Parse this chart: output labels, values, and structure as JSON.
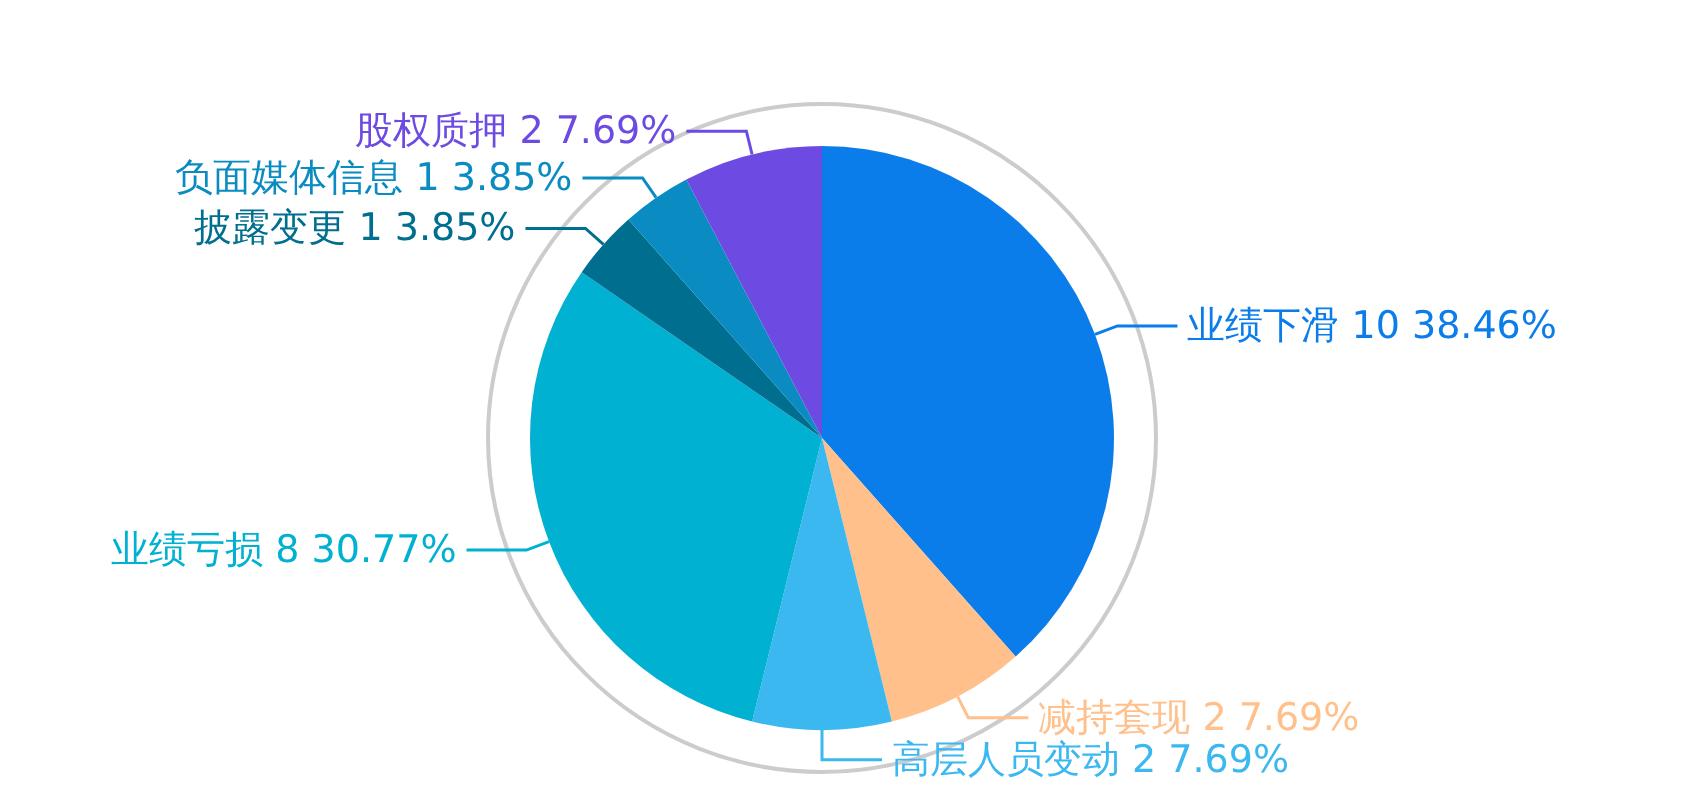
{
  "chart_data": {
    "type": "pie",
    "categories": [
      "业绩下滑",
      "减持套现",
      "高层人员变动",
      "业绩亏损",
      "披露变更",
      "负面媒体信息",
      "股权质押"
    ],
    "values": [
      10,
      2,
      2,
      8,
      1,
      1,
      2
    ],
    "value_labels": [
      "10 38.46%",
      "2 7.69%",
      "2 7.69%",
      "8 30.77%",
      "1 3.85%",
      "1 3.85%",
      "2 7.69%"
    ],
    "colors": [
      "#0a7deb",
      "#ffc08c",
      "#3bb8ef",
      "#00b1d2",
      "#006f8f",
      "#0a8bc2",
      "#6d4be2"
    ],
    "legend": false
  }
}
